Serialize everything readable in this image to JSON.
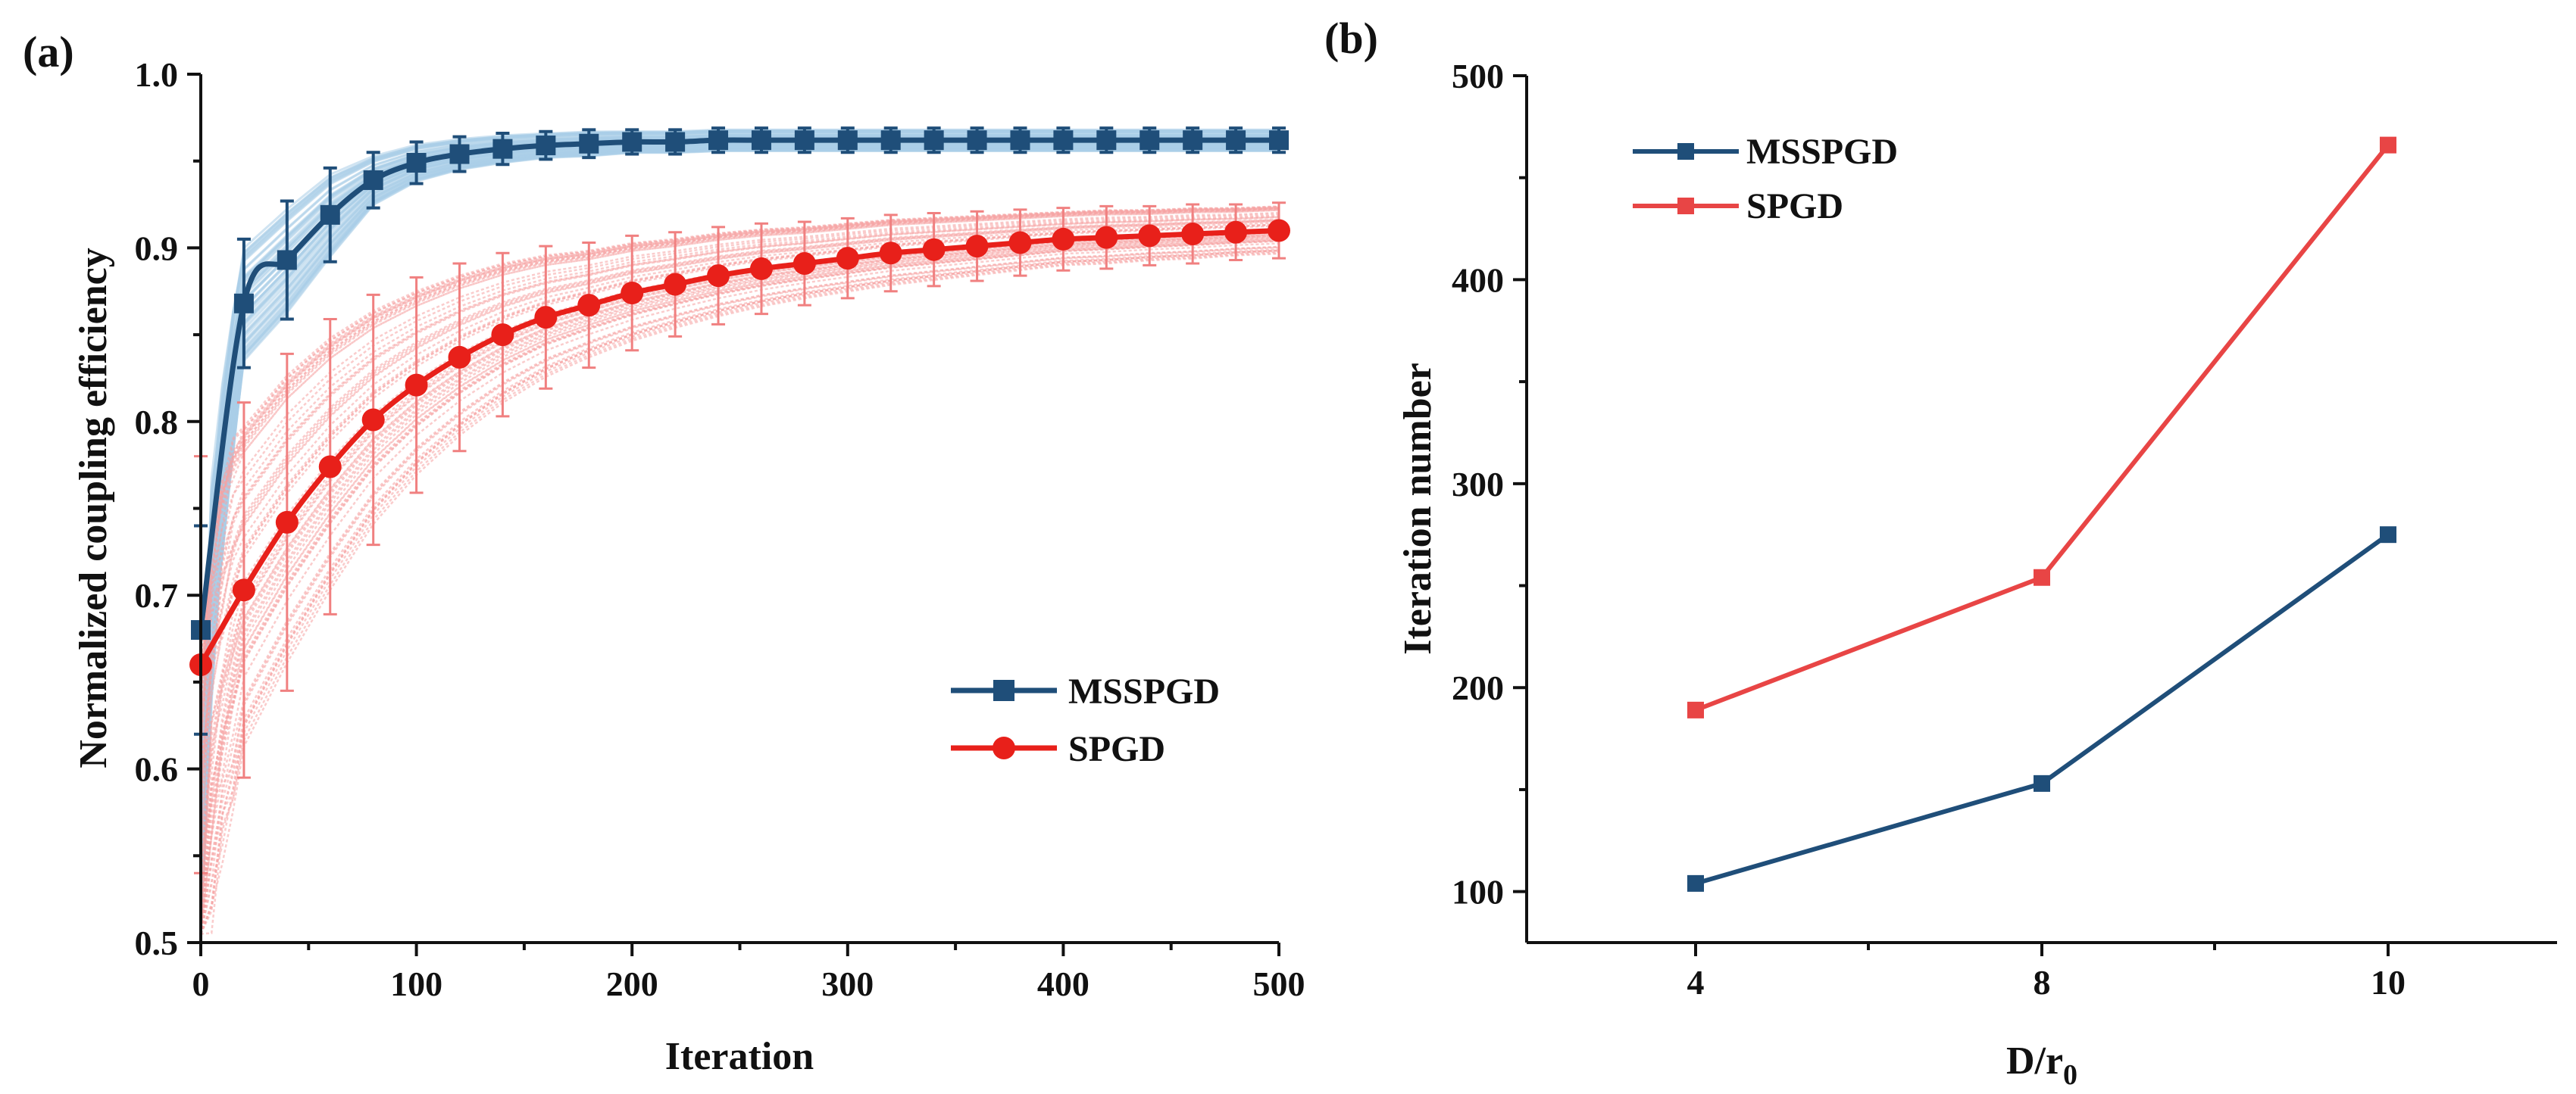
{
  "chart_data": [
    {
      "type": "line",
      "panel_label": "(a)",
      "xlabel": "Iteration",
      "ylabel": "Normalized coupling efficiency",
      "xlim": [
        0,
        500
      ],
      "ylim": [
        0.5,
        1.0
      ],
      "xticks": [
        "0",
        "100",
        "200",
        "300",
        "400",
        "500"
      ],
      "yticks": [
        "0.5",
        "0.6",
        "0.7",
        "0.8",
        "0.9",
        "1.0"
      ],
      "legend_position": "bottom-right",
      "x": [
        0,
        20,
        40,
        60,
        80,
        100,
        120,
        140,
        160,
        180,
        200,
        220,
        240,
        260,
        280,
        300,
        320,
        340,
        360,
        380,
        400,
        420,
        440,
        460,
        480,
        500
      ],
      "series": [
        {
          "name": "MSSPGD",
          "color": "#1f4e79",
          "marker": "square",
          "band_color": "#a9cde8",
          "values": [
            0.68,
            0.868,
            0.893,
            0.919,
            0.939,
            0.949,
            0.954,
            0.957,
            0.959,
            0.96,
            0.961,
            0.961,
            0.962,
            0.962,
            0.962,
            0.962,
            0.962,
            0.962,
            0.962,
            0.962,
            0.962,
            0.962,
            0.962,
            0.962,
            0.962,
            0.962
          ],
          "errors": [
            0.06,
            0.037,
            0.034,
            0.027,
            0.016,
            0.012,
            0.01,
            0.009,
            0.008,
            0.008,
            0.007,
            0.007,
            0.007,
            0.007,
            0.007,
            0.007,
            0.007,
            0.007,
            0.007,
            0.007,
            0.007,
            0.007,
            0.007,
            0.007,
            0.007,
            0.007
          ]
        },
        {
          "name": "SPGD",
          "color": "#e8201a",
          "marker": "circle",
          "band_color": "#f6a3a3",
          "values": [
            0.66,
            0.703,
            0.742,
            0.774,
            0.801,
            0.821,
            0.837,
            0.85,
            0.86,
            0.867,
            0.874,
            0.879,
            0.884,
            0.888,
            0.891,
            0.894,
            0.897,
            0.899,
            0.901,
            0.903,
            0.905,
            0.906,
            0.907,
            0.908,
            0.909,
            0.91
          ],
          "errors": [
            0.12,
            0.108,
            0.097,
            0.085,
            0.072,
            0.062,
            0.054,
            0.047,
            0.041,
            0.036,
            0.033,
            0.03,
            0.028,
            0.026,
            0.024,
            0.023,
            0.022,
            0.021,
            0.02,
            0.019,
            0.018,
            0.018,
            0.017,
            0.017,
            0.016,
            0.016
          ]
        }
      ]
    },
    {
      "type": "line",
      "panel_label": "(b)",
      "xlabel": "D/r",
      "xlabel_sub": "0",
      "ylabel": "Iteration number",
      "categories": [
        "4",
        "8",
        "10"
      ],
      "ylim": [
        75,
        500
      ],
      "yticks": [
        "100",
        "200",
        "300",
        "400",
        "500"
      ],
      "legend_position": "top-left",
      "series": [
        {
          "name": "MSSPGD",
          "color": "#1f4e79",
          "marker": "square",
          "values": [
            104,
            153,
            275
          ]
        },
        {
          "name": "SPGD",
          "color": "#e84545",
          "marker": "square",
          "values": [
            189,
            254,
            466
          ]
        }
      ]
    }
  ]
}
